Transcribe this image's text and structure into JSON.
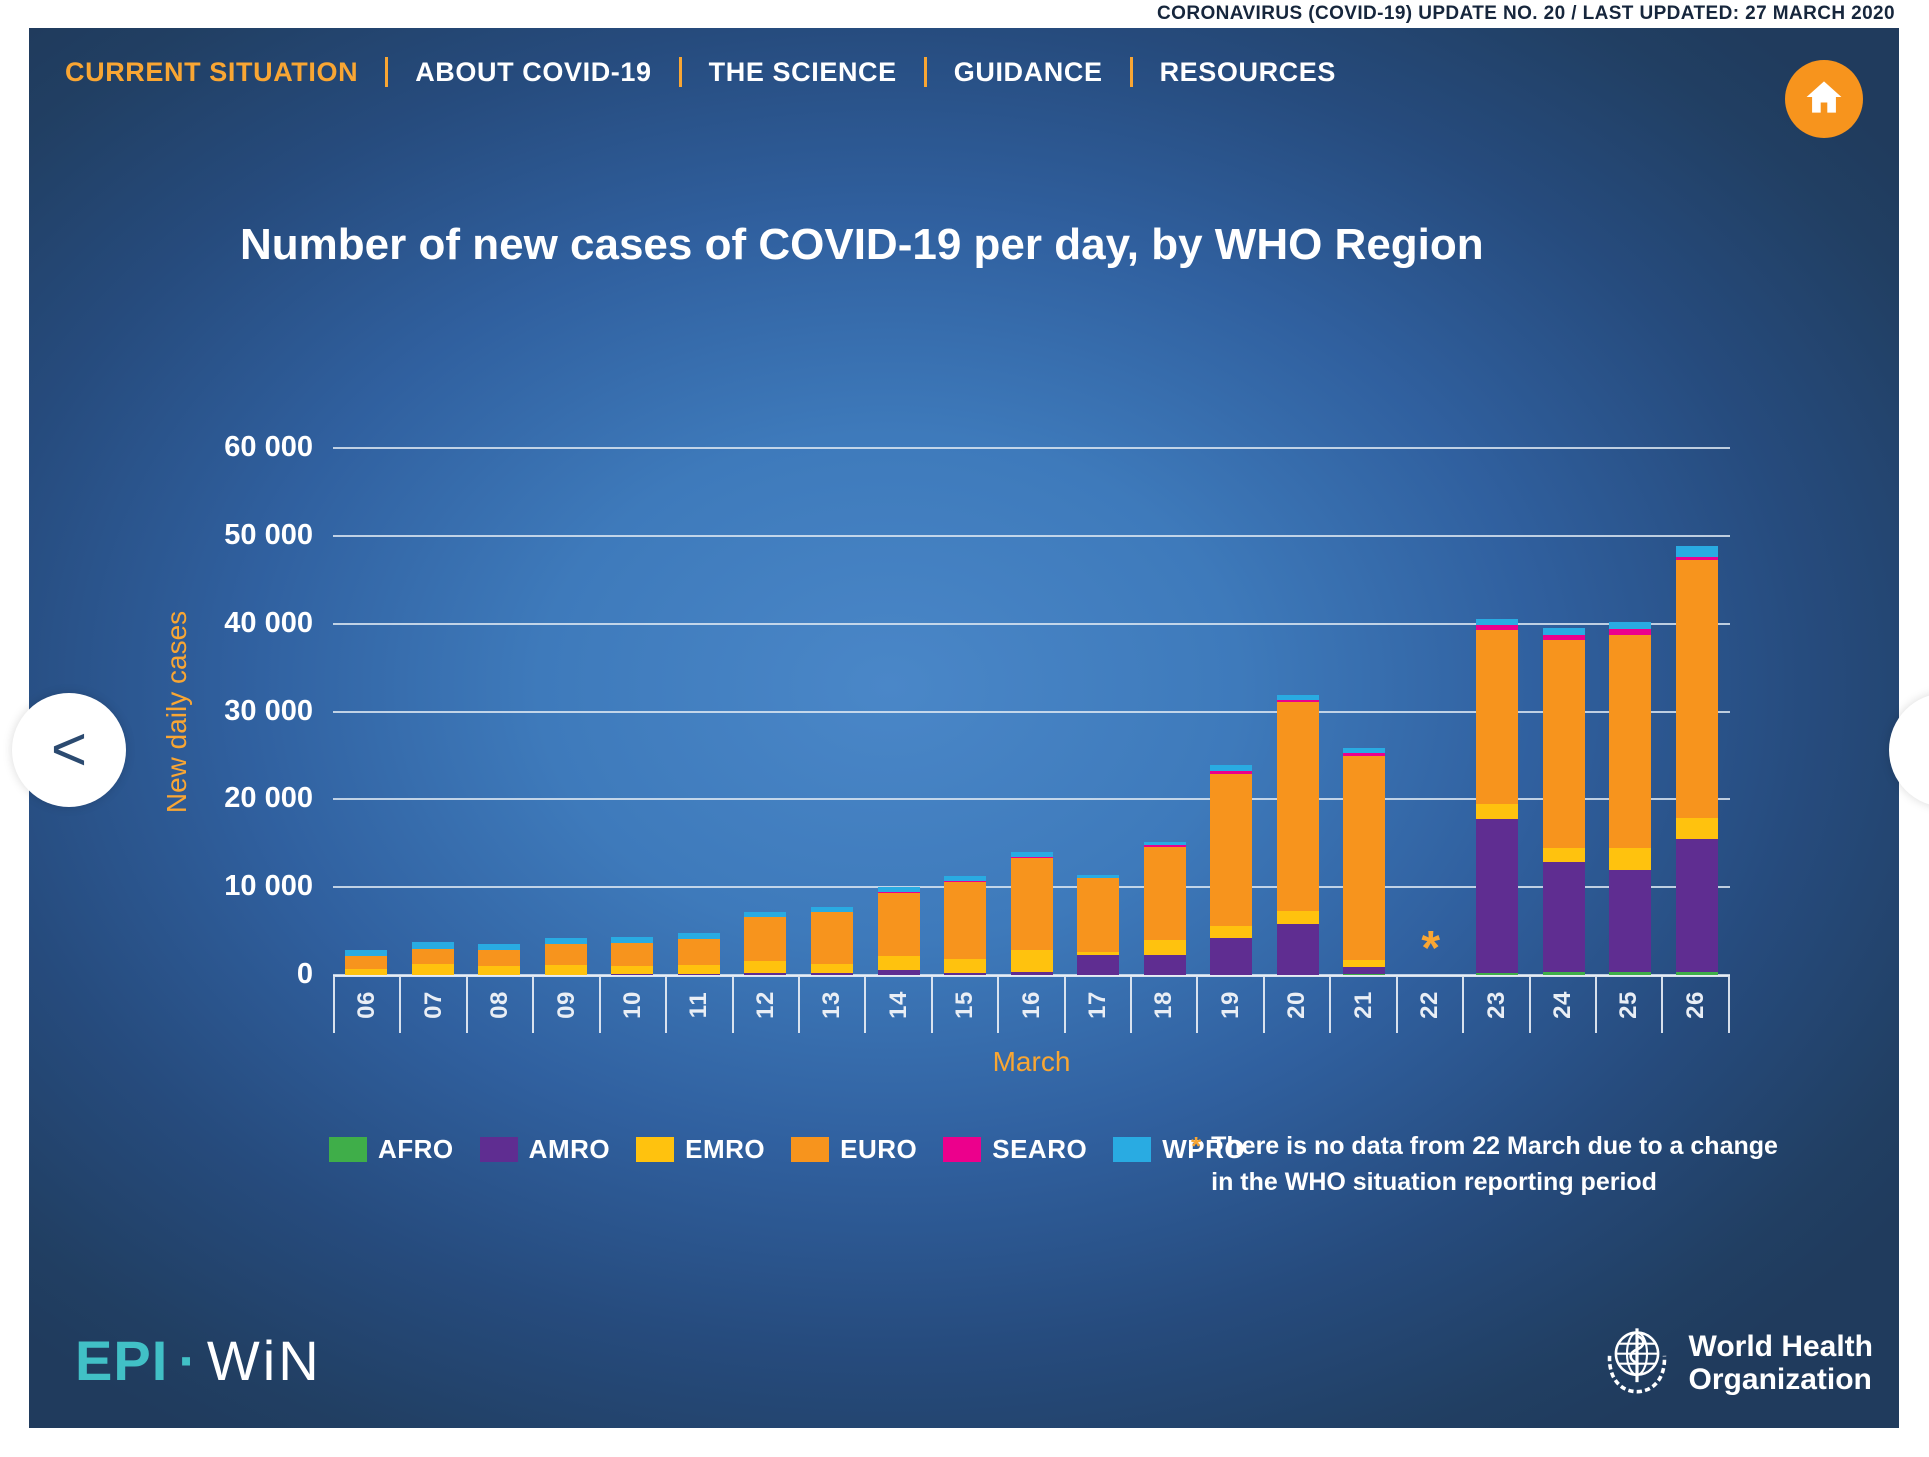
{
  "top_bar": {
    "update_text": "CORONAVIRUS (COVID-19) UPDATE NO. 20  /  LAST UPDATED: 27 MARCH 2020"
  },
  "nav": {
    "items": [
      {
        "label": "CURRENT SITUATION",
        "active": true
      },
      {
        "label": "ABOUT COVID-19",
        "active": false
      },
      {
        "label": "THE SCIENCE",
        "active": false
      },
      {
        "label": "GUIDANCE",
        "active": false
      },
      {
        "label": "RESOURCES",
        "active": false
      }
    ]
  },
  "pager": {
    "prev": "<",
    "next": ">"
  },
  "chart_data": {
    "type": "bar",
    "stacked": true,
    "title": "Number of new cases of COVID-19 per day, by WHO Region",
    "xlabel": "March",
    "ylabel": "New daily cases",
    "ylim": [
      0,
      60000
    ],
    "ytick_step": 10000,
    "ytick_labels_top_down": [
      "60 000",
      "50 000",
      "40 000",
      "30 000",
      "20 000",
      "10 000",
      "0"
    ],
    "grid": true,
    "legend_position": "bottom",
    "categories": [
      "06",
      "07",
      "08",
      "09",
      "10",
      "11",
      "12",
      "13",
      "14",
      "15",
      "16",
      "17",
      "18",
      "19",
      "20",
      "21",
      "22",
      "23",
      "24",
      "25",
      "26"
    ],
    "series": [
      {
        "name": "AFRO",
        "color": "#3fae49",
        "values": [
          0,
          0,
          0,
          0,
          0,
          0,
          0,
          0,
          0,
          0,
          0,
          0,
          0,
          0,
          0,
          80,
          null,
          270,
          300,
          300,
          300
        ]
      },
      {
        "name": "AMRO",
        "color": "#5f2d91",
        "values": [
          0,
          0,
          0,
          0,
          110,
          110,
          190,
          190,
          560,
          260,
          370,
          2320,
          2320,
          4190,
          5800,
          860,
          null,
          17450,
          12570,
          11620,
          15130
        ]
      },
      {
        "name": "EMRO",
        "color": "#ffc20e",
        "values": [
          670,
          1300,
          1040,
          1150,
          930,
          1000,
          1400,
          1110,
          1570,
          1610,
          2430,
          300,
          1610,
          1420,
          1500,
          820,
          null,
          1710,
          1600,
          2550,
          2480
        ]
      },
      {
        "name": "EURO",
        "color": "#f7941d",
        "values": [
          1480,
          1670,
          1780,
          2400,
          2590,
          2960,
          5000,
          5930,
          7230,
          8690,
          10480,
          8430,
          10670,
          17300,
          23780,
          23220,
          null,
          19800,
          23730,
          24270,
          29330
        ]
      },
      {
        "name": "SEARO",
        "color": "#ec008c",
        "values": [
          0,
          0,
          0,
          0,
          0,
          0,
          0,
          0,
          80,
          190,
          190,
          0,
          260,
          370,
          260,
          300,
          null,
          570,
          460,
          610,
          300
        ]
      },
      {
        "name": "WPRO",
        "color": "#29abe2",
        "values": [
          740,
          740,
          740,
          700,
          740,
          670,
          560,
          550,
          640,
          490,
          560,
          370,
          300,
          670,
          490,
          560,
          null,
          690,
          840,
          840,
          1300
        ]
      }
    ],
    "no_data": {
      "category": "22",
      "marker": "*"
    }
  },
  "note": {
    "marker": "*",
    "line1": "There is no data from 22 March due to a change",
    "line2": "in the WHO situation reporting period"
  },
  "footer": {
    "epiwin": {
      "epi": "EPI",
      "dot": "·",
      "win": "WiN"
    },
    "who": {
      "line1": "World Health",
      "line2": "Organization"
    }
  },
  "colors": {
    "accent_orange": "#f9a633",
    "home_orange": "#f7941d",
    "teal": "#41c0c6",
    "arrow_blue": "#2b4a70"
  }
}
